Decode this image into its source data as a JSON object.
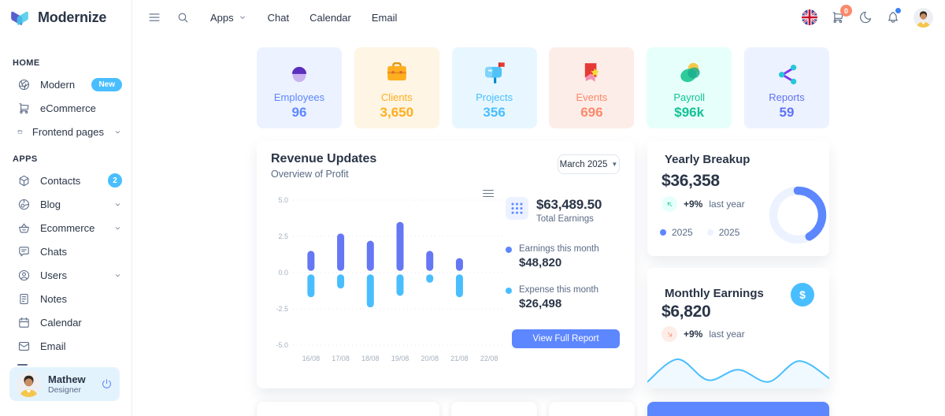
{
  "brand": {
    "name": "Modernize"
  },
  "header": {
    "nav": [
      {
        "label": "Apps",
        "chevron": true
      },
      {
        "label": "Chat",
        "chevron": false
      },
      {
        "label": "Calendar",
        "chevron": false
      },
      {
        "label": "Email",
        "chevron": false
      }
    ],
    "cart_badge": "0"
  },
  "sidebar": {
    "sections": [
      {
        "label": "HOME",
        "items": [
          {
            "label": "Modern",
            "icon": "aperture-icon",
            "badge": "New"
          },
          {
            "label": "eCommerce",
            "icon": "cart-icon"
          },
          {
            "label": "Frontend pages",
            "icon": "window-icon",
            "chevron": true
          }
        ]
      },
      {
        "label": "APPS",
        "items": [
          {
            "label": "Contacts",
            "icon": "package-icon",
            "badge_num": "2"
          },
          {
            "label": "Blog",
            "icon": "blog-icon",
            "chevron": true
          },
          {
            "label": "Ecommerce",
            "icon": "basket-icon",
            "chevron": true
          },
          {
            "label": "Chats",
            "icon": "chat-icon"
          },
          {
            "label": "Users",
            "icon": "users-icon",
            "chevron": true
          },
          {
            "label": "Notes",
            "icon": "notes-icon"
          },
          {
            "label": "Calendar",
            "icon": "calendar-icon"
          },
          {
            "label": "Email",
            "icon": "mail-icon"
          }
        ]
      }
    ],
    "profile": {
      "name": "Mathew",
      "role": "Designer"
    }
  },
  "stats": [
    {
      "label": "Employees",
      "value": "96",
      "bg": "#ECF2FF",
      "color": "#5D87FF",
      "icon": "employees-icon"
    },
    {
      "label": "Clients",
      "value": "3,650",
      "bg": "#FEF5E5",
      "color": "#FFAE1F",
      "icon": "clients-icon"
    },
    {
      "label": "Projects",
      "value": "356",
      "bg": "#E8F7FF",
      "color": "#49BEFF",
      "icon": "projects-icon"
    },
    {
      "label": "Events",
      "value": "696",
      "bg": "#FDEDE8",
      "color": "#FA896B",
      "icon": "events-icon"
    },
    {
      "label": "Payroll",
      "value": "$96k",
      "bg": "#E6FFFA",
      "color": "#13C296",
      "icon": "payroll-icon"
    },
    {
      "label": "Reports",
      "value": "59",
      "bg": "#ECF2FF",
      "color": "#6172F3",
      "icon": "reports-icon"
    }
  ],
  "revenue": {
    "title": "Revenue Updates",
    "subtitle": "Overview of Profit",
    "period": "March 2025",
    "total_value": "$63,489.50",
    "total_label": "Total Earnings",
    "earnings_label": "Earnings this month",
    "earnings_value": "$48,820",
    "expense_label": "Expense this month",
    "expense_value": "$26,498",
    "button_label": "View Full Report"
  },
  "yearly": {
    "title": "Yearly Breakup",
    "value": "$36,358",
    "delta": "+9%",
    "delta_label": "last year",
    "legend": [
      "2025",
      "2025"
    ]
  },
  "monthly": {
    "title": "Monthly Earnings",
    "value": "$6,820",
    "delta": "+9%",
    "delta_label": "last year",
    "currency_icon": "$"
  },
  "chart_data": [
    {
      "type": "bar",
      "title": "Revenue Updates",
      "x": [
        "16/08",
        "17/08",
        "18/08",
        "19/08",
        "20/08",
        "21/08",
        "22/08"
      ],
      "series": [
        {
          "name": "Earnings this month",
          "color": "#6577F3",
          "values": [
            1.5,
            2.7,
            2.2,
            3.5,
            1.5,
            1.0,
            0
          ]
        },
        {
          "name": "Expense this month",
          "color": "#49BEFF",
          "values": [
            -1.7,
            -1.1,
            -2.4,
            -1.6,
            -0.7,
            -1.7,
            0
          ]
        }
      ],
      "ylim": [
        -5,
        5
      ],
      "yticks": [
        5,
        2.5,
        0,
        -2.5,
        -5
      ],
      "grid": "dotted horizontal"
    },
    {
      "type": "pie",
      "title": "Yearly Breakup",
      "labels": [
        "2025",
        "2025"
      ],
      "values": [
        42,
        58
      ],
      "colors": [
        "#5D87FF",
        "#ECF2FF"
      ],
      "style": "donut"
    },
    {
      "type": "area",
      "title": "Monthly Earnings sparkline",
      "values": [
        10,
        75,
        15,
        45,
        10,
        70,
        20
      ],
      "color": "#49BEFF"
    }
  ],
  "colors": {
    "primary": "#5D87FF",
    "secondary": "#49BEFF",
    "success": "#13C296",
    "warning": "#FFAE1F",
    "error": "#FA896B"
  }
}
